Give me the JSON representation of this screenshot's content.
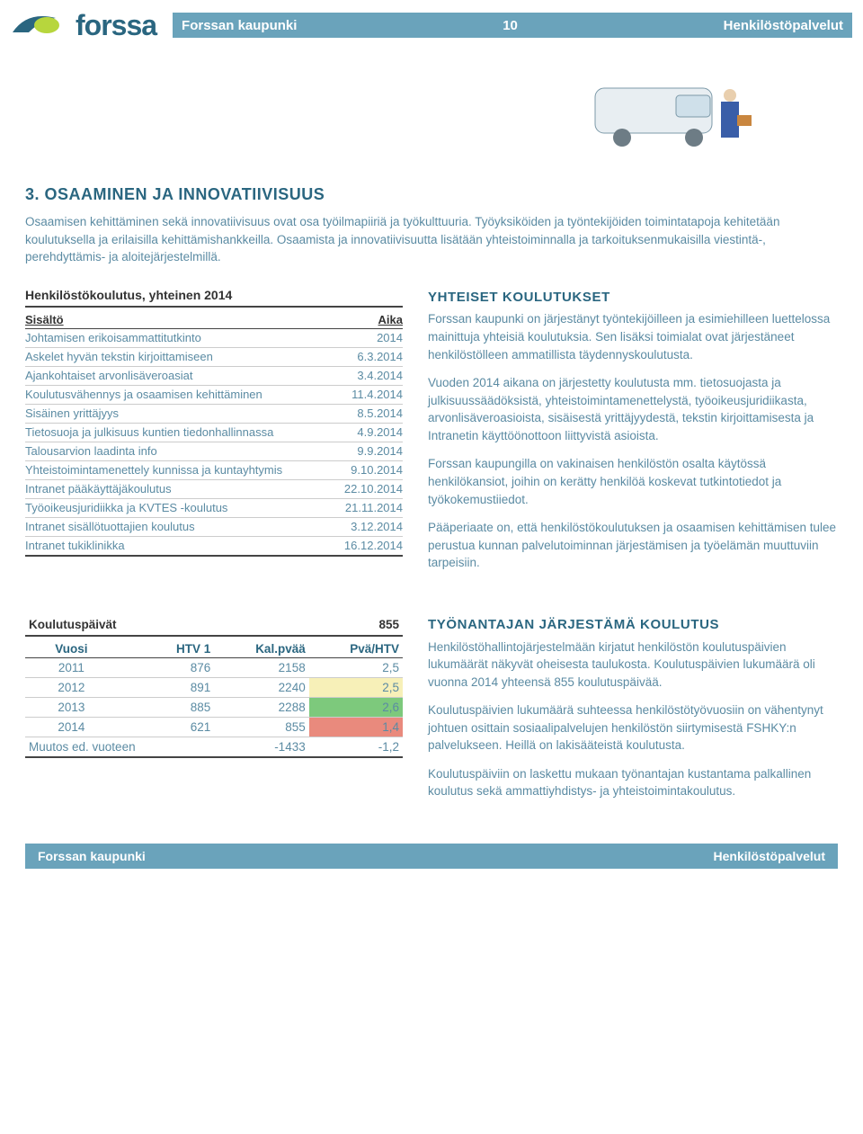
{
  "header": {
    "brand": "forssa",
    "left": "Forssan kaupunki",
    "page_number": "10",
    "right": "Henkilöstöpalvelut",
    "logo_colors": {
      "swoosh": "#2a6680",
      "accent": "#b7d63d"
    }
  },
  "section": {
    "title": "3. OSAAMINEN JA INNOVATIIVISUUS",
    "intro": "Osaamisen kehittäminen sekä innovatiivisuus ovat osa työilmapiiriä ja työkulttuuria. Työyksiköiden ja työntekijöiden toimintatapoja kehitetään koulutuksella ja erilaisilla kehittämishankkeilla. Osaamista ja innovatiivisuutta lisätään yhteistoiminnalla ja tarkoituksenmukaisilla viestintä-, perehdyttämis- ja aloitejärjestelmillä."
  },
  "training_table": {
    "title": "Henkilöstökoulutus, yhteinen 2014",
    "col_content": "Sisältö",
    "col_time": "Aika",
    "rows": [
      {
        "label": "Johtamisen erikoisammattitutkinto",
        "time": "2014"
      },
      {
        "label": "Askelet hyvän tekstin kirjoittamiseen",
        "time": "6.3.2014"
      },
      {
        "label": "Ajankohtaiset arvonlisäveroasiat",
        "time": "3.4.2014"
      },
      {
        "label": "Koulutusvähennys ja osaamisen kehittäminen",
        "time": "11.4.2014"
      },
      {
        "label": "Sisäinen yrittäjyys",
        "time": "8.5.2014"
      },
      {
        "label": "Tietosuoja ja julkisuus kuntien tiedonhallinnassa",
        "time": "4.9.2014"
      },
      {
        "label": "Talousarvion laadinta info",
        "time": "9.9.2014"
      },
      {
        "label": "Yhteistoimintamenettely kunnissa ja kuntayhtymis",
        "time": "9.10.2014"
      },
      {
        "label": "Intranet pääkäyttäjäkoulutus",
        "time": "22.10.2014"
      },
      {
        "label": "Työoikeusjuridiikka ja KVTES -koulutus",
        "time": "21.11.2014"
      },
      {
        "label": "Intranet sisällötuottajien koulutus",
        "time": "3.12.2014"
      },
      {
        "label": "Intranet tukiklinikka",
        "time": "16.12.2014"
      }
    ]
  },
  "joint_trainings": {
    "title": "YHTEISET KOULUTUKSET",
    "p1": "Forssan kaupunki on järjestänyt työntekijöilleen ja esimiehilleen luettelossa mainittuja yhteisiä koulutuksia. Sen lisäksi toimialat ovat järjestäneet henkilöstölleen ammatillista täydennyskoulutusta.",
    "p2": "Vuoden 2014 aikana on järjestetty koulutusta mm. tietosuojasta ja julkisuussäädöksistä, yhteistoimintamenettelystä, työoikeusjuridiikasta, arvonlisäveroasioista, sisäisestä yrittäjyydestä, tekstin kirjoittamisesta ja Intranetin käyttöönottoon liittyvistä asioista.",
    "p3": "Forssan kaupungilla on vakinaisen henkilöstön osalta käytössä henkilökansiot, joihin on kerätty henkilöä koskevat tutkintotiedot ja työkokemustiiedot.",
    "p4": "Pääperiaate on, että henkilöstökoulutuksen ja osaamisen kehittämisen tulee perustua kunnan palvelutoiminnan järjestämisen ja työelämän muuttuviin tarpeisiin."
  },
  "days_table": {
    "title": "Koulutuspäivät",
    "total": "855",
    "columns": {
      "year": "Vuosi",
      "htv1": "HTV 1",
      "kalpvaa": "Kal.pvää",
      "pvahtv": "Pvä/HTV"
    },
    "rows": [
      {
        "year": "2011",
        "htv1": "876",
        "kal": "2158",
        "pva": "2,5",
        "hl": ""
      },
      {
        "year": "2012",
        "htv1": "891",
        "kal": "2240",
        "pva": "2,5",
        "hl": "yellow"
      },
      {
        "year": "2013",
        "htv1": "885",
        "kal": "2288",
        "pva": "2,6",
        "hl": "green"
      },
      {
        "year": "2014",
        "htv1": "621",
        "kal": "855",
        "pva": "1,4",
        "hl": "red"
      }
    ],
    "change_label": "Muutos ed. vuoteen",
    "change_kal": "-1433",
    "change_pva": "-1,2",
    "highlight_colors": {
      "yellow": "#f7f0b8",
      "green": "#7dc97c",
      "red": "#e98a7d"
    }
  },
  "employer_training": {
    "title": "TYÖNANTAJAN JÄRJESTÄMÄ KOULUTUS",
    "p1": "Henkilöstöhallintojärjestelmään kirjatut henkilöstön koulutuspäivien lukumäärät näkyvät oheisesta taulukosta. Koulutuspäivien lukumäärä oli vuonna 2014 yhteensä 855 koulutuspäivää.",
    "p2": "Koulutuspäivien lukumäärä suhteessa henkilöstötyövuosiin on vähentynyt johtuen osittain sosiaalipalvelujen henkilöstön siirtymisestä FSHKY:n palvelukseen. Heillä on lakisääteistä koulutusta.",
    "p3": "Koulutuspäiviin on laskettu mukaan työnantajan kustantama palkallinen koulutus sekä ammattiyhdistys- ja yhteistoimintakoulutus."
  },
  "footer": {
    "left": "Forssan kaupunki",
    "right": "Henkilöstöpalvelut"
  },
  "colors": {
    "brand_blue": "#2a6680",
    "bar_blue": "#6aa3bb",
    "body_blue": "#5b8ba3",
    "text_dark": "#333333"
  }
}
